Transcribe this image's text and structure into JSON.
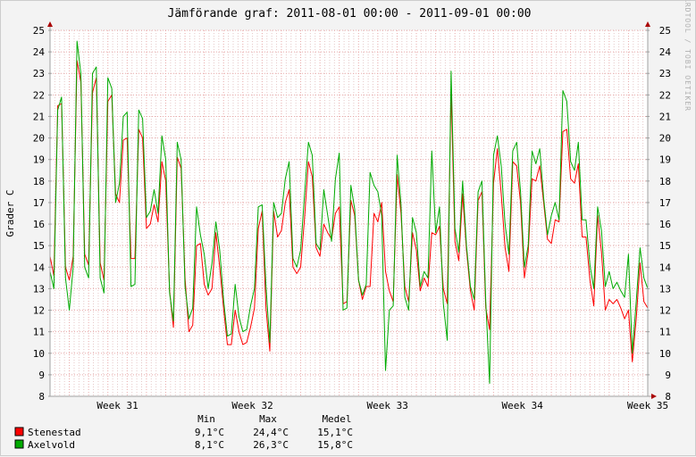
{
  "chart_data": {
    "type": "line",
    "title": "Jämförande graf: 2011-08-01 00:00 - 2011-09-01 00:00",
    "ylabel": "Grader C",
    "xlabel": "",
    "watermark": "RRDTOOL / TOBI OETIKER",
    "ylim": [
      8,
      25
    ],
    "yticks": [
      8,
      9,
      10,
      11,
      12,
      13,
      14,
      15,
      16,
      17,
      18,
      19,
      20,
      21,
      22,
      23,
      24,
      25
    ],
    "x_range_days": [
      0,
      31
    ],
    "x_ticks": [
      {
        "label": "Week 31",
        "day": 3.5
      },
      {
        "label": "Week 32",
        "day": 10.5
      },
      {
        "label": "Week 33",
        "day": 17.5
      },
      {
        "label": "Week 34",
        "day": 24.5
      },
      {
        "label": "Week 35",
        "day": 31
      }
    ],
    "grid": true,
    "legend_header": {
      "min": "Min",
      "max": "Max",
      "mean": "Medel"
    },
    "series": [
      {
        "name": "Stenestad",
        "color": "#ff0000",
        "min": "9,1°C",
        "max": "24,4°C",
        "mean": "15,1°C",
        "points": [
          [
            0.0,
            14.5
          ],
          [
            0.2,
            13.6
          ],
          [
            0.4,
            21.5
          ],
          [
            0.6,
            21.6
          ],
          [
            0.8,
            14.0
          ],
          [
            1.0,
            13.4
          ],
          [
            1.2,
            14.5
          ],
          [
            1.4,
            23.6
          ],
          [
            1.6,
            22.6
          ],
          [
            1.8,
            14.6
          ],
          [
            2.0,
            14.1
          ],
          [
            2.2,
            22.1
          ],
          [
            2.4,
            22.8
          ],
          [
            2.6,
            14.2
          ],
          [
            2.8,
            13.4
          ],
          [
            3.0,
            21.7
          ],
          [
            3.2,
            22.0
          ],
          [
            3.4,
            17.4
          ],
          [
            3.6,
            17.0
          ],
          [
            3.8,
            19.9
          ],
          [
            4.0,
            20.0
          ],
          [
            4.2,
            14.4
          ],
          [
            4.4,
            14.4
          ],
          [
            4.6,
            20.4
          ],
          [
            4.8,
            20.0
          ],
          [
            5.0,
            15.8
          ],
          [
            5.2,
            16.0
          ],
          [
            5.4,
            16.9
          ],
          [
            5.6,
            16.1
          ],
          [
            5.8,
            18.9
          ],
          [
            6.0,
            18.0
          ],
          [
            6.2,
            12.9
          ],
          [
            6.4,
            11.2
          ],
          [
            6.6,
            19.1
          ],
          [
            6.8,
            18.6
          ],
          [
            7.0,
            13.5
          ],
          [
            7.2,
            11.0
          ],
          [
            7.4,
            11.3
          ],
          [
            7.6,
            15.0
          ],
          [
            7.8,
            15.1
          ],
          [
            8.0,
            13.2
          ],
          [
            8.2,
            12.7
          ],
          [
            8.4,
            13.0
          ],
          [
            8.6,
            15.6
          ],
          [
            8.8,
            14.0
          ],
          [
            9.0,
            12.1
          ],
          [
            9.2,
            10.4
          ],
          [
            9.4,
            10.4
          ],
          [
            9.6,
            12.0
          ],
          [
            9.8,
            11.0
          ],
          [
            10.0,
            10.4
          ],
          [
            10.2,
            10.5
          ],
          [
            10.4,
            11.2
          ],
          [
            10.6,
            12.1
          ],
          [
            10.8,
            15.8
          ],
          [
            11.0,
            16.6
          ],
          [
            11.2,
            12.1
          ],
          [
            11.4,
            10.1
          ],
          [
            11.6,
            16.6
          ],
          [
            11.8,
            15.4
          ],
          [
            12.0,
            15.7
          ],
          [
            12.2,
            17.0
          ],
          [
            12.4,
            17.6
          ],
          [
            12.6,
            14.0
          ],
          [
            12.8,
            13.7
          ],
          [
            13.0,
            14.0
          ],
          [
            13.2,
            16.3
          ],
          [
            13.4,
            18.9
          ],
          [
            13.6,
            18.2
          ],
          [
            13.8,
            14.9
          ],
          [
            14.0,
            14.5
          ],
          [
            14.2,
            16.0
          ],
          [
            14.4,
            15.6
          ],
          [
            14.6,
            15.3
          ],
          [
            14.8,
            16.5
          ],
          [
            15.0,
            16.8
          ],
          [
            15.2,
            12.3
          ],
          [
            15.4,
            12.4
          ],
          [
            15.6,
            17.1
          ],
          [
            15.8,
            16.4
          ],
          [
            16.0,
            13.4
          ],
          [
            16.2,
            12.5
          ],
          [
            16.4,
            13.1
          ],
          [
            16.6,
            13.1
          ],
          [
            16.8,
            16.5
          ],
          [
            17.0,
            16.1
          ],
          [
            17.2,
            17.0
          ],
          [
            17.4,
            13.8
          ],
          [
            17.6,
            12.9
          ],
          [
            17.8,
            12.4
          ],
          [
            18.0,
            18.3
          ],
          [
            18.2,
            16.5
          ],
          [
            18.4,
            13.1
          ],
          [
            18.6,
            12.4
          ],
          [
            18.8,
            15.6
          ],
          [
            19.0,
            14.8
          ],
          [
            19.2,
            12.9
          ],
          [
            19.4,
            13.5
          ],
          [
            19.6,
            13.1
          ],
          [
            19.8,
            15.6
          ],
          [
            20.0,
            15.5
          ],
          [
            20.2,
            15.9
          ],
          [
            20.4,
            13.0
          ],
          [
            20.6,
            12.3
          ],
          [
            20.8,
            22.2
          ],
          [
            21.0,
            15.2
          ],
          [
            21.2,
            14.3
          ],
          [
            21.4,
            17.4
          ],
          [
            21.6,
            14.8
          ],
          [
            21.8,
            12.9
          ],
          [
            22.0,
            12.0
          ],
          [
            22.2,
            17.1
          ],
          [
            22.4,
            17.5
          ],
          [
            22.6,
            12.1
          ],
          [
            22.8,
            11.1
          ],
          [
            23.0,
            17.9
          ],
          [
            23.2,
            19.5
          ],
          [
            23.4,
            17.4
          ],
          [
            23.6,
            14.9
          ],
          [
            23.8,
            13.8
          ],
          [
            24.0,
            18.9
          ],
          [
            24.2,
            18.7
          ],
          [
            24.4,
            17.0
          ],
          [
            24.6,
            13.5
          ],
          [
            24.8,
            14.7
          ],
          [
            25.0,
            18.1
          ],
          [
            25.2,
            18.0
          ],
          [
            25.4,
            18.7
          ],
          [
            25.6,
            17.0
          ],
          [
            25.8,
            15.3
          ],
          [
            26.0,
            15.1
          ],
          [
            26.2,
            16.2
          ],
          [
            26.4,
            16.1
          ],
          [
            26.6,
            20.3
          ],
          [
            26.8,
            20.4
          ],
          [
            27.0,
            18.1
          ],
          [
            27.2,
            17.9
          ],
          [
            27.4,
            18.8
          ],
          [
            27.6,
            15.4
          ],
          [
            27.8,
            15.4
          ],
          [
            28.0,
            13.4
          ],
          [
            28.2,
            12.2
          ],
          [
            28.4,
            16.4
          ],
          [
            28.6,
            14.7
          ],
          [
            28.8,
            12.0
          ],
          [
            29.0,
            12.5
          ],
          [
            29.2,
            12.3
          ],
          [
            29.4,
            12.5
          ],
          [
            29.6,
            12.1
          ],
          [
            29.8,
            11.6
          ],
          [
            30.0,
            12.0
          ],
          [
            30.2,
            9.6
          ],
          [
            30.4,
            11.6
          ],
          [
            30.6,
            14.2
          ],
          [
            30.8,
            12.4
          ],
          [
            31.0,
            12.1
          ]
        ]
      },
      {
        "name": "Axelvold",
        "color": "#00aa00",
        "min": "8,1°C",
        "max": "26,3°C",
        "mean": "15,8°C",
        "points": [
          [
            0.0,
            13.8
          ],
          [
            0.2,
            13.0
          ],
          [
            0.4,
            21.3
          ],
          [
            0.6,
            21.9
          ],
          [
            0.8,
            13.5
          ],
          [
            1.0,
            12.0
          ],
          [
            1.2,
            14.0
          ],
          [
            1.4,
            24.5
          ],
          [
            1.6,
            23.0
          ],
          [
            1.8,
            14.0
          ],
          [
            2.0,
            13.5
          ],
          [
            2.2,
            23.0
          ],
          [
            2.4,
            23.3
          ],
          [
            2.6,
            13.5
          ],
          [
            2.8,
            12.8
          ],
          [
            3.0,
            22.8
          ],
          [
            3.2,
            22.3
          ],
          [
            3.4,
            17.0
          ],
          [
            3.6,
            17.9
          ],
          [
            3.8,
            21.0
          ],
          [
            4.0,
            21.2
          ],
          [
            4.2,
            13.1
          ],
          [
            4.4,
            13.2
          ],
          [
            4.6,
            21.3
          ],
          [
            4.8,
            20.9
          ],
          [
            5.0,
            16.3
          ],
          [
            5.2,
            16.6
          ],
          [
            5.4,
            17.6
          ],
          [
            5.6,
            16.5
          ],
          [
            5.8,
            20.1
          ],
          [
            6.0,
            19.0
          ],
          [
            6.2,
            12.8
          ],
          [
            6.4,
            11.5
          ],
          [
            6.6,
            19.8
          ],
          [
            6.8,
            19.0
          ],
          [
            7.0,
            13.1
          ],
          [
            7.2,
            11.6
          ],
          [
            7.4,
            12.1
          ],
          [
            7.6,
            16.8
          ],
          [
            7.8,
            15.5
          ],
          [
            8.0,
            14.6
          ],
          [
            8.2,
            13.0
          ],
          [
            8.4,
            14.2
          ],
          [
            8.6,
            16.1
          ],
          [
            8.8,
            14.8
          ],
          [
            9.0,
            12.5
          ],
          [
            9.2,
            10.8
          ],
          [
            9.4,
            10.9
          ],
          [
            9.6,
            13.2
          ],
          [
            9.8,
            11.7
          ],
          [
            10.0,
            11.0
          ],
          [
            10.2,
            11.1
          ],
          [
            10.4,
            12.2
          ],
          [
            10.6,
            13.0
          ],
          [
            10.8,
            16.8
          ],
          [
            11.0,
            16.9
          ],
          [
            11.2,
            13.1
          ],
          [
            11.4,
            10.5
          ],
          [
            11.6,
            17.0
          ],
          [
            11.8,
            16.3
          ],
          [
            12.0,
            16.5
          ],
          [
            12.2,
            18.1
          ],
          [
            12.4,
            18.9
          ],
          [
            12.6,
            14.4
          ],
          [
            12.8,
            14.0
          ],
          [
            13.0,
            14.8
          ],
          [
            13.2,
            17.4
          ],
          [
            13.4,
            19.8
          ],
          [
            13.6,
            19.2
          ],
          [
            13.8,
            15.1
          ],
          [
            14.0,
            14.8
          ],
          [
            14.2,
            17.6
          ],
          [
            14.4,
            16.4
          ],
          [
            14.6,
            15.2
          ],
          [
            14.8,
            18.1
          ],
          [
            15.0,
            19.3
          ],
          [
            15.2,
            12.0
          ],
          [
            15.4,
            12.1
          ],
          [
            15.6,
            17.8
          ],
          [
            15.8,
            16.7
          ],
          [
            16.0,
            13.4
          ],
          [
            16.2,
            12.7
          ],
          [
            16.4,
            13.2
          ],
          [
            16.6,
            18.4
          ],
          [
            16.8,
            17.8
          ],
          [
            17.0,
            17.5
          ],
          [
            17.2,
            16.4
          ],
          [
            17.4,
            9.2
          ],
          [
            17.6,
            12.0
          ],
          [
            17.8,
            12.2
          ],
          [
            18.0,
            19.2
          ],
          [
            18.2,
            16.9
          ],
          [
            18.4,
            12.6
          ],
          [
            18.6,
            12.0
          ],
          [
            18.8,
            16.3
          ],
          [
            19.0,
            15.6
          ],
          [
            19.2,
            13.1
          ],
          [
            19.4,
            13.8
          ],
          [
            19.6,
            13.5
          ],
          [
            19.8,
            19.4
          ],
          [
            20.0,
            15.6
          ],
          [
            20.2,
            16.8
          ],
          [
            20.4,
            12.3
          ],
          [
            20.6,
            10.6
          ],
          [
            20.8,
            23.1
          ],
          [
            21.0,
            15.8
          ],
          [
            21.2,
            14.7
          ],
          [
            21.4,
            18.0
          ],
          [
            21.6,
            15.0
          ],
          [
            21.8,
            13.1
          ],
          [
            22.0,
            12.5
          ],
          [
            22.2,
            17.5
          ],
          [
            22.4,
            18.0
          ],
          [
            22.6,
            12.4
          ],
          [
            22.8,
            8.6
          ],
          [
            23.0,
            19.2
          ],
          [
            23.2,
            20.1
          ],
          [
            23.4,
            18.7
          ],
          [
            23.6,
            16.0
          ],
          [
            23.8,
            14.6
          ],
          [
            24.0,
            19.4
          ],
          [
            24.2,
            19.8
          ],
          [
            24.4,
            17.5
          ],
          [
            24.6,
            14.0
          ],
          [
            24.8,
            15.0
          ],
          [
            25.0,
            19.4
          ],
          [
            25.2,
            18.8
          ],
          [
            25.4,
            19.5
          ],
          [
            25.6,
            17.2
          ],
          [
            25.8,
            15.5
          ],
          [
            26.0,
            16.4
          ],
          [
            26.2,
            17.0
          ],
          [
            26.4,
            16.2
          ],
          [
            26.6,
            22.2
          ],
          [
            26.8,
            21.7
          ],
          [
            27.0,
            18.9
          ],
          [
            27.2,
            18.5
          ],
          [
            27.4,
            19.8
          ],
          [
            27.6,
            16.2
          ],
          [
            27.8,
            16.2
          ],
          [
            28.0,
            14.1
          ],
          [
            28.2,
            13.0
          ],
          [
            28.4,
            16.8
          ],
          [
            28.6,
            15.7
          ],
          [
            28.8,
            13.1
          ],
          [
            29.0,
            13.8
          ],
          [
            29.2,
            13.0
          ],
          [
            29.4,
            13.3
          ],
          [
            29.6,
            12.9
          ],
          [
            29.8,
            12.6
          ],
          [
            30.0,
            14.6
          ],
          [
            30.2,
            10.0
          ],
          [
            30.4,
            12.4
          ],
          [
            30.6,
            14.9
          ],
          [
            30.8,
            13.5
          ],
          [
            31.0,
            13.0
          ]
        ]
      }
    ]
  }
}
